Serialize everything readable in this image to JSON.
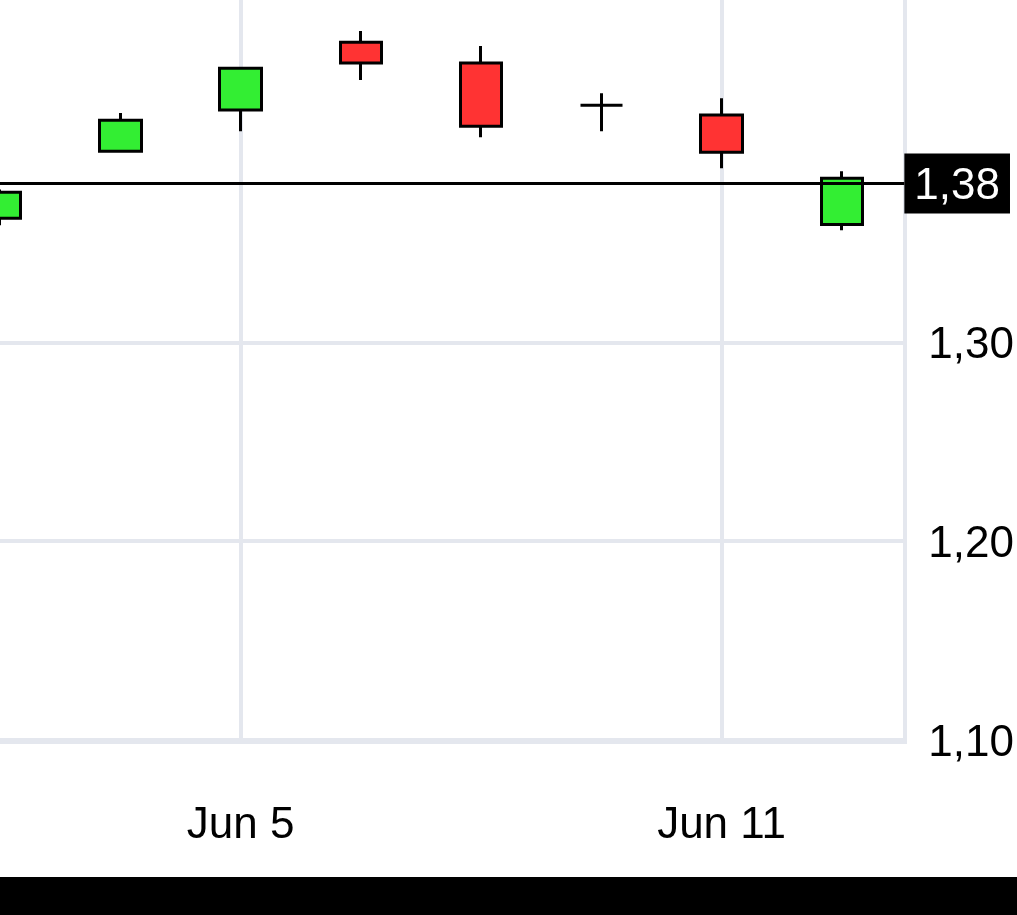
{
  "chart_data": {
    "type": "candlestick",
    "categories": [
      null,
      null,
      "Jun 5",
      null,
      null,
      null,
      "Jun 11",
      null
    ],
    "ohlc": [
      [
        1.3625,
        1.377,
        1.359,
        1.3756
      ],
      [
        1.3962,
        1.4154,
        1.396,
        1.4118
      ],
      [
        1.4169,
        1.438,
        1.4063,
        1.438
      ],
      [
        1.4511,
        1.4567,
        1.432,
        1.4406
      ],
      [
        1.4406,
        1.4491,
        1.4033,
        1.4088
      ],
      [
        1.4194,
        1.4254,
        1.4063,
        1.4194
      ],
      [
        1.4144,
        1.4229,
        1.3877,
        1.3957
      ],
      [
        1.3594,
        1.3861,
        1.3564,
        1.3826
      ]
    ],
    "colors": [
      "#33ee33",
      "#33ee33",
      "#33ee33",
      "#ff3333",
      "#ff3333",
      "#000000",
      "#ff3333",
      "#33ee33"
    ],
    "ylim": [
      1.1,
      1.4723
    ],
    "yticks": [
      {
        "value": 1.1,
        "label": "1,10"
      },
      {
        "value": 1.2,
        "label": "1,20"
      },
      {
        "value": 1.3,
        "label": "1,30"
      }
    ],
    "ref_lines": [
      {
        "axis": "y",
        "value": 1.38,
        "label": "1,38",
        "color": "#000000"
      }
    ],
    "grid": true
  }
}
